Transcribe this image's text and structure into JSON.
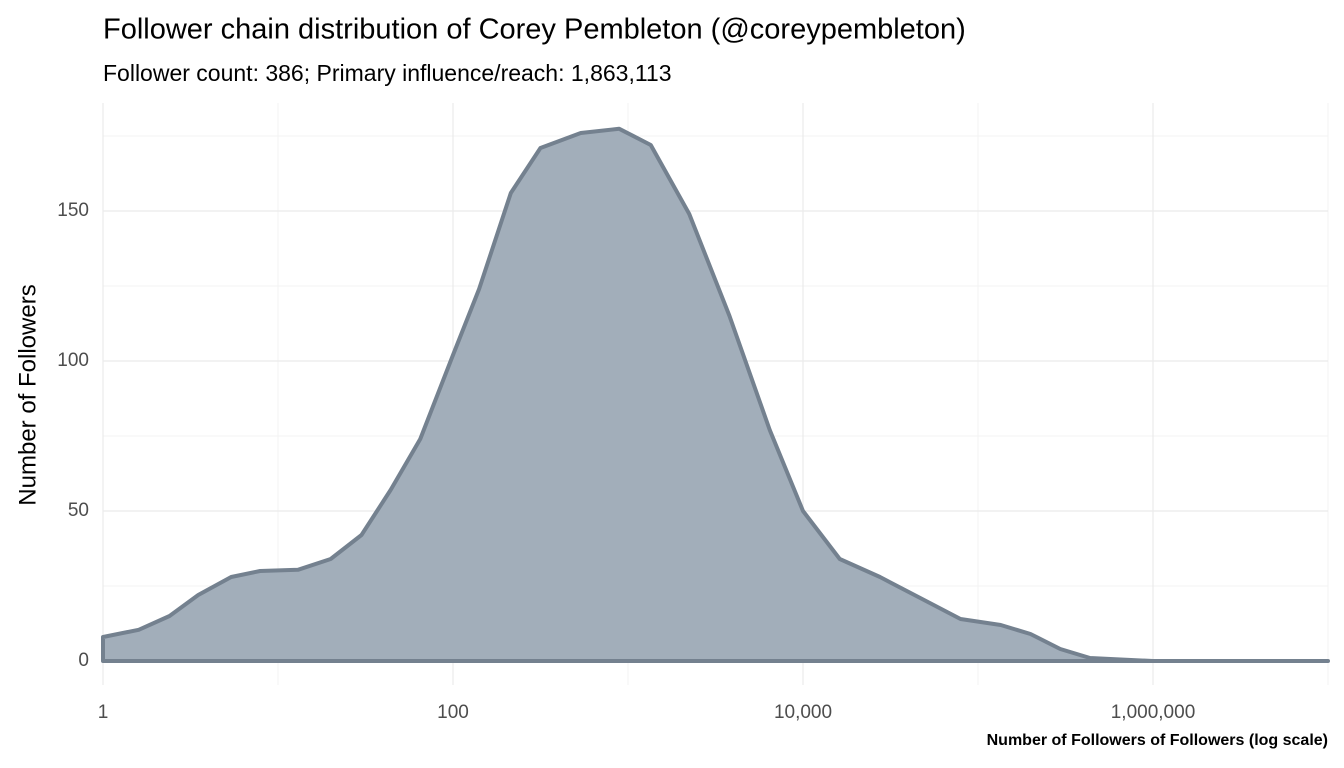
{
  "chart_data": {
    "type": "area",
    "title": "Follower chain distribution of Corey Pembleton (@coreypembleton)",
    "subtitle": "Follower count: 386; Primary influence/reach: 1,863,113",
    "x_label": "Number of Followers of Followers (log scale)",
    "y_label": "Number of Followers",
    "x": [
      1,
      1.6,
      2.4,
      3.5,
      5.4,
      7.9,
      13,
      20,
      30,
      44,
      65,
      100,
      141,
      214,
      316,
      537,
      891,
      1349,
      2239,
      3802,
      6457,
      10000,
      16218,
      27542,
      46774,
      79433,
      134896,
      199526,
      295121,
      436516,
      1000000,
      10000000
    ],
    "values": [
      8,
      10.4,
      15,
      22,
      28,
      30,
      30.4,
      34,
      42,
      57,
      74,
      102,
      124,
      156,
      171,
      176,
      177.4,
      172,
      149,
      115,
      77,
      50,
      34,
      28,
      21,
      14,
      12,
      9,
      4,
      1,
      0,
      0
    ],
    "color": "#a2aeba",
    "line_color": "#74818f",
    "x_log": true,
    "grid": true,
    "xlim": [
      1,
      10000000
    ],
    "ylim": [
      -8,
      186
    ],
    "xticks": [
      1,
      100,
      {
        "value": 10000,
        "label": "10,000"
      },
      {
        "value": 1000000,
        "label": "1,000,000"
      }
    ],
    "yticks": [
      0,
      50,
      100,
      150
    ]
  }
}
